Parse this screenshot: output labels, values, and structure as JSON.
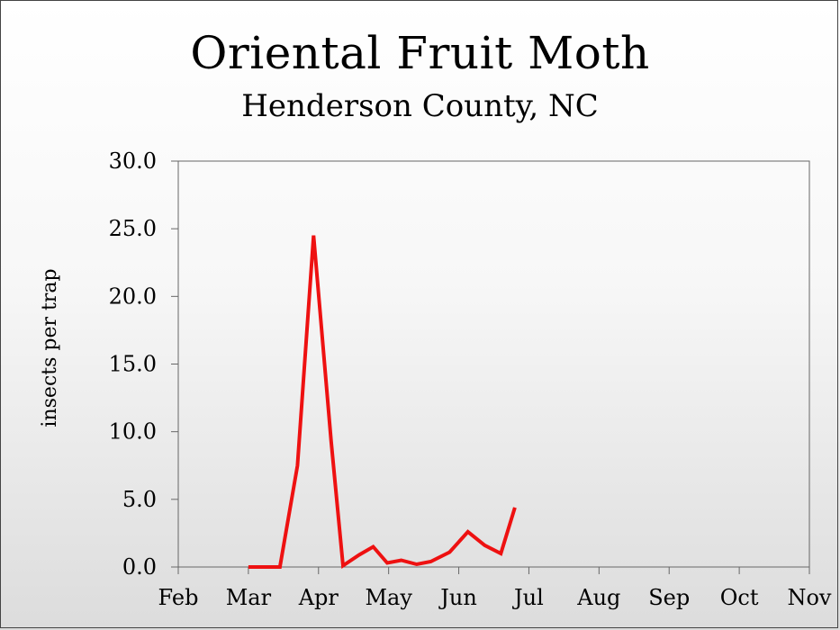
{
  "chart_data": {
    "type": "line",
    "title": "Oriental Fruit Moth",
    "subtitle": "Henderson County, NC",
    "ylabel": "insects per trap",
    "xlabel": "",
    "categories": [
      "Feb",
      "Mar",
      "Apr",
      "May",
      "Jun",
      "Jul",
      "Aug",
      "Sep",
      "Oct",
      "Nov"
    ],
    "ylim": [
      0,
      30
    ],
    "yticks": [
      "0.0",
      "5.0",
      "10.0",
      "15.0",
      "20.0",
      "25.0",
      "30.0"
    ],
    "grid": false,
    "legend": "none",
    "series": [
      {
        "color": "#ee1111",
        "points": [
          {
            "x": 1.0,
            "y": 0.0
          },
          {
            "x": 1.45,
            "y": 0.0
          },
          {
            "x": 1.7,
            "y": 7.5
          },
          {
            "x": 1.93,
            "y": 24.5
          },
          {
            "x": 2.18,
            "y": 9.3
          },
          {
            "x": 2.35,
            "y": 0.1
          },
          {
            "x": 2.58,
            "y": 0.9
          },
          {
            "x": 2.78,
            "y": 1.5
          },
          {
            "x": 2.98,
            "y": 0.3
          },
          {
            "x": 3.18,
            "y": 0.5
          },
          {
            "x": 3.4,
            "y": 0.2
          },
          {
            "x": 3.6,
            "y": 0.4
          },
          {
            "x": 3.87,
            "y": 1.1
          },
          {
            "x": 4.13,
            "y": 2.6
          },
          {
            "x": 4.37,
            "y": 1.6
          },
          {
            "x": 4.6,
            "y": 1.0
          },
          {
            "x": 4.8,
            "y": 4.4
          }
        ]
      }
    ]
  }
}
